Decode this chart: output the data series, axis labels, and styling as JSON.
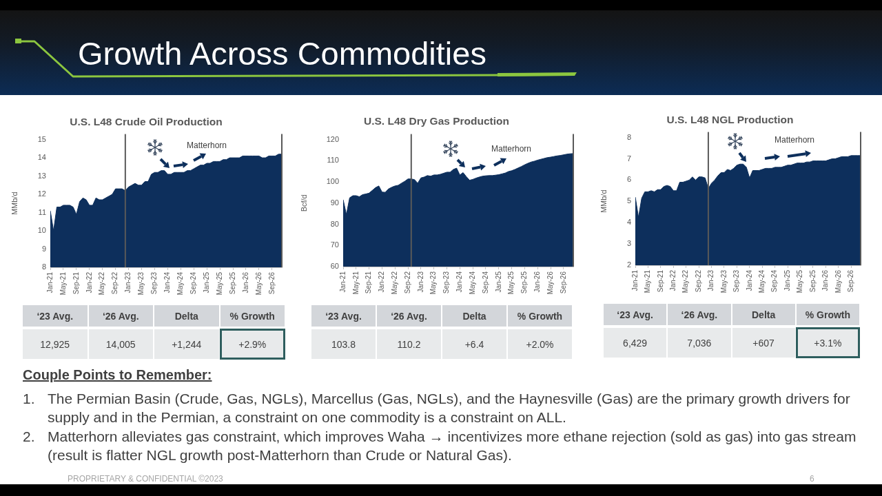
{
  "chart_data": [
    {
      "type": "other",
      "title": "Growth Across Commodities",
      "annotations": [
        "PROPRIETARY & CONFIDENTIAL ©2023",
        "6"
      ]
    },
    {
      "type": "area",
      "title": "U.S. L48 Crude Oil Production",
      "ylabel": "MMb/d",
      "color": "#0d2f5c",
      "x": [
        "2021-01",
        "2021-02",
        "2021-03",
        "2021-04",
        "2021-05",
        "2021-06",
        "2021-07",
        "2021-08",
        "2021-09",
        "2021-10",
        "2021-11",
        "2021-12",
        "2022-01",
        "2022-02",
        "2022-03",
        "2022-04",
        "2022-05",
        "2022-06",
        "2022-07",
        "2022-08",
        "2022-09",
        "2022-10",
        "2022-11",
        "2022-12",
        "2023-01",
        "2023-02",
        "2023-03",
        "2023-04",
        "2023-05",
        "2023-06",
        "2023-07",
        "2023-08",
        "2023-09",
        "2023-10",
        "2023-11",
        "2023-12",
        "2024-01",
        "2024-02",
        "2024-03",
        "2024-04",
        "2024-05",
        "2024-06",
        "2024-07",
        "2024-08",
        "2024-09",
        "2024-10",
        "2024-11",
        "2024-12",
        "2025-01",
        "2025-02",
        "2025-03",
        "2025-04",
        "2025-05",
        "2025-06",
        "2025-07",
        "2025-08",
        "2025-09",
        "2025-10",
        "2025-11",
        "2025-12",
        "2026-01",
        "2026-02",
        "2026-03",
        "2026-04",
        "2026-05",
        "2026-06",
        "2026-07",
        "2026-08",
        "2026-09",
        "2026-10",
        "2026-11",
        "2026-12"
      ],
      "values": [
        11.1,
        10.0,
        11.3,
        11.3,
        11.4,
        11.4,
        11.4,
        11.3,
        10.9,
        11.6,
        11.8,
        11.7,
        11.4,
        11.4,
        11.8,
        11.7,
        11.7,
        11.8,
        11.9,
        12.0,
        12.3,
        12.3,
        12.3,
        12.2,
        12.4,
        12.5,
        12.6,
        12.5,
        12.5,
        12.7,
        12.7,
        13.1,
        13.2,
        13.2,
        13.3,
        13.3,
        13.1,
        13.1,
        13.2,
        13.2,
        13.2,
        13.2,
        13.3,
        13.3,
        13.4,
        13.5,
        13.6,
        13.6,
        13.7,
        13.7,
        13.8,
        13.8,
        13.8,
        13.9,
        13.9,
        14.0,
        14.0,
        14.0,
        14.0,
        14.1,
        14.1,
        14.1,
        14.1,
        14.1,
        14.1,
        14.0,
        14.0,
        14.1,
        14.1,
        14.1,
        14.2,
        14.2
      ],
      "xlim": [
        "2021-01",
        "2026-12"
      ],
      "ylim": [
        8,
        15
      ],
      "yticks": [
        8,
        9,
        10,
        11,
        12,
        13,
        14,
        15
      ],
      "xticks": [
        {
          "value": "2021-01",
          "label": "Jan-21"
        },
        {
          "value": "2021-05",
          "label": "May-21"
        },
        {
          "value": "2021-09",
          "label": "Sep-21"
        },
        {
          "value": "2022-01",
          "label": "Jan-22"
        },
        {
          "value": "2022-05",
          "label": "May-22"
        },
        {
          "value": "2022-09",
          "label": "Sep-22"
        },
        {
          "value": "2023-01",
          "label": "Jan-23"
        },
        {
          "value": "2023-05",
          "label": "May-23"
        },
        {
          "value": "2023-09",
          "label": "Sep-23"
        },
        {
          "value": "2024-01",
          "label": "Jan-24"
        },
        {
          "value": "2024-05",
          "label": "May-24"
        },
        {
          "value": "2024-09",
          "label": "Sep-24"
        },
        {
          "value": "2025-01",
          "label": "Jan-25"
        },
        {
          "value": "2025-05",
          "label": "May-25"
        },
        {
          "value": "2025-09",
          "label": "Sep-25"
        },
        {
          "value": "2026-01",
          "label": "Jan-26"
        },
        {
          "value": "2026-05",
          "label": "May-26"
        },
        {
          "value": "2026-09",
          "label": "Sep-26"
        }
      ],
      "ref_lines": [
        {
          "axis": "x",
          "value": "2022-12",
          "color": "#595959"
        },
        {
          "axis": "x",
          "value": "2026-12",
          "color": "#595959"
        }
      ],
      "annotations": [
        "Matterhorn",
        "‘23 Avg.",
        "‘26 Avg.",
        "Delta",
        "% Growth",
        "12,925",
        "14,005",
        "+1,244",
        "+2.9%"
      ]
    },
    {
      "type": "area",
      "title": "U.S. L48 Dry Gas Production",
      "ylabel": "Bcf/d",
      "color": "#0d2f5c",
      "x": [
        "2021-01",
        "2021-02",
        "2021-03",
        "2021-04",
        "2021-05",
        "2021-06",
        "2021-07",
        "2021-08",
        "2021-09",
        "2021-10",
        "2021-11",
        "2021-12",
        "2022-01",
        "2022-02",
        "2022-03",
        "2022-04",
        "2022-05",
        "2022-06",
        "2022-07",
        "2022-08",
        "2022-09",
        "2022-10",
        "2022-11",
        "2022-12",
        "2023-01",
        "2023-02",
        "2023-03",
        "2023-04",
        "2023-05",
        "2023-06",
        "2023-07",
        "2023-08",
        "2023-09",
        "2023-10",
        "2023-11",
        "2023-12",
        "2024-01",
        "2024-02",
        "2024-03",
        "2024-04",
        "2024-05",
        "2024-06",
        "2024-07",
        "2024-08",
        "2024-09",
        "2024-10",
        "2024-11",
        "2024-12",
        "2025-01",
        "2025-02",
        "2025-03",
        "2025-04",
        "2025-05",
        "2025-06",
        "2025-07",
        "2025-08",
        "2025-09",
        "2025-10",
        "2025-11",
        "2025-12",
        "2026-01",
        "2026-02",
        "2026-03",
        "2026-04",
        "2026-05",
        "2026-06",
        "2026-07",
        "2026-08",
        "2026-09",
        "2026-10",
        "2026-11",
        "2026-12"
      ],
      "values": [
        91.6,
        84.6,
        92.5,
        93.5,
        93.5,
        93.0,
        94.0,
        94.3,
        94.7,
        96.0,
        97.3,
        98.1,
        95.2,
        95.1,
        96.7,
        97.5,
        98.1,
        98.4,
        99.4,
        100.3,
        101.4,
        101.4,
        101.1,
        99.4,
        101.9,
        102.3,
        103.0,
        102.7,
        103.3,
        103.3,
        103.6,
        104.1,
        104.6,
        104.6,
        105.9,
        106.5,
        103.3,
        104.4,
        102.5,
        100.8,
        101.2,
        101.8,
        102.3,
        102.7,
        102.9,
        103.0,
        103.0,
        103.2,
        103.4,
        103.8,
        104.2,
        104.9,
        105.3,
        105.9,
        106.6,
        107.3,
        108.1,
        108.8,
        109.4,
        109.8,
        110.3,
        110.7,
        111.1,
        111.5,
        111.7,
        112.0,
        112.3,
        112.5,
        112.8,
        113.1,
        113.3,
        113.4
      ],
      "xlim": [
        "2021-01",
        "2026-12"
      ],
      "ylim": [
        60,
        120
      ],
      "yticks": [
        60,
        70,
        80,
        90,
        100,
        110,
        120
      ],
      "xticks": [
        {
          "value": "2021-01",
          "label": "Jan-21"
        },
        {
          "value": "2021-05",
          "label": "May-21"
        },
        {
          "value": "2021-09",
          "label": "Sep-21"
        },
        {
          "value": "2022-01",
          "label": "Jan-22"
        },
        {
          "value": "2022-05",
          "label": "May-22"
        },
        {
          "value": "2022-09",
          "label": "Sep-22"
        },
        {
          "value": "2023-01",
          "label": "Jan-23"
        },
        {
          "value": "2023-05",
          "label": "May-23"
        },
        {
          "value": "2023-09",
          "label": "Sep-23"
        },
        {
          "value": "2024-01",
          "label": "Jan-24"
        },
        {
          "value": "2024-05",
          "label": "May-24"
        },
        {
          "value": "2024-09",
          "label": "Sep-24"
        },
        {
          "value": "2025-01",
          "label": "Jan-25"
        },
        {
          "value": "2025-05",
          "label": "May-25"
        },
        {
          "value": "2025-09",
          "label": "Sep-25"
        },
        {
          "value": "2026-01",
          "label": "Jan-26"
        },
        {
          "value": "2026-05",
          "label": "May-26"
        },
        {
          "value": "2026-09",
          "label": "Sep-26"
        }
      ],
      "ref_lines": [
        {
          "axis": "x",
          "value": "2022-10",
          "color": "#595959"
        },
        {
          "axis": "x",
          "value": "2026-12",
          "color": "#595959"
        }
      ],
      "annotations": [
        "Matterhorn",
        "‘23 Avg.",
        "‘26 Avg.",
        "Delta",
        "% Growth",
        "103.8",
        "110.2",
        "+6.4",
        "+2.0%"
      ]
    },
    {
      "type": "area",
      "title": "U.S. L48 NGL Production",
      "ylabel": "MMb/d",
      "color": "#0d2f5c",
      "x": [
        "2021-01",
        "2021-02",
        "2021-03",
        "2021-04",
        "2021-05",
        "2021-06",
        "2021-07",
        "2021-08",
        "2021-09",
        "2021-10",
        "2021-11",
        "2021-12",
        "2022-01",
        "2022-02",
        "2022-03",
        "2022-04",
        "2022-05",
        "2022-06",
        "2022-07",
        "2022-08",
        "2022-09",
        "2022-10",
        "2022-11",
        "2022-12",
        "2023-01",
        "2023-02",
        "2023-03",
        "2023-04",
        "2023-05",
        "2023-06",
        "2023-07",
        "2023-08",
        "2023-09",
        "2023-10",
        "2023-11",
        "2023-12",
        "2024-01",
        "2024-02",
        "2024-03",
        "2024-04",
        "2024-05",
        "2024-06",
        "2024-07",
        "2024-08",
        "2024-09",
        "2024-10",
        "2024-11",
        "2024-12",
        "2025-01",
        "2025-02",
        "2025-03",
        "2025-04",
        "2025-05",
        "2025-06",
        "2025-07",
        "2025-08",
        "2025-09",
        "2025-10",
        "2025-11",
        "2025-12",
        "2026-01",
        "2026-02",
        "2026-03",
        "2026-04",
        "2026-05",
        "2026-06",
        "2026-07",
        "2026-08",
        "2026-09",
        "2026-10",
        "2026-11",
        "2026-12"
      ],
      "values": [
        5.2,
        4.25,
        5.15,
        5.45,
        5.45,
        5.5,
        5.45,
        5.55,
        5.55,
        5.7,
        5.75,
        5.7,
        5.5,
        5.5,
        5.9,
        5.9,
        5.95,
        6.0,
        6.15,
        6.0,
        6.15,
        6.15,
        6.1,
        5.6,
        5.85,
        6.0,
        6.2,
        6.35,
        6.35,
        6.5,
        6.45,
        6.55,
        6.7,
        6.75,
        6.75,
        6.6,
        6.1,
        6.45,
        6.45,
        6.45,
        6.5,
        6.55,
        6.55,
        6.55,
        6.6,
        6.6,
        6.6,
        6.65,
        6.7,
        6.7,
        6.75,
        6.8,
        6.8,
        6.8,
        6.85,
        6.85,
        6.9,
        6.9,
        6.9,
        6.9,
        6.9,
        6.95,
        7.0,
        7.0,
        7.05,
        7.1,
        7.1,
        7.1,
        7.15,
        7.15,
        7.15,
        7.15
      ],
      "xlim": [
        "2021-01",
        "2026-12"
      ],
      "ylim": [
        2,
        8
      ],
      "yticks": [
        2,
        3,
        4,
        5,
        6,
        7,
        8
      ],
      "xticks": [
        {
          "value": "2021-01",
          "label": "Jan-21"
        },
        {
          "value": "2021-05",
          "label": "May-21"
        },
        {
          "value": "2021-09",
          "label": "Sep-21"
        },
        {
          "value": "2022-01",
          "label": "Jan-22"
        },
        {
          "value": "2022-05",
          "label": "May-22"
        },
        {
          "value": "2022-09",
          "label": "Sep-22"
        },
        {
          "value": "2023-01",
          "label": "Jan-23"
        },
        {
          "value": "2023-05",
          "label": "May-23"
        },
        {
          "value": "2023-09",
          "label": "Sep-23"
        },
        {
          "value": "2024-01",
          "label": "Jan-24"
        },
        {
          "value": "2024-05",
          "label": "May-24"
        },
        {
          "value": "2024-09",
          "label": "Sep-24"
        },
        {
          "value": "2025-01",
          "label": "Jan-25"
        },
        {
          "value": "2025-05",
          "label": "May-25"
        },
        {
          "value": "2025-09",
          "label": "Sep-25"
        },
        {
          "value": "2026-01",
          "label": "Jan-26"
        },
        {
          "value": "2026-05",
          "label": "May-26"
        },
        {
          "value": "2026-09",
          "label": "Sep-26"
        }
      ],
      "ref_lines": [
        {
          "axis": "x",
          "value": "2022-12",
          "color": "#595959"
        },
        {
          "axis": "x",
          "value": "2026-12",
          "color": "#595959"
        }
      ],
      "annotations": [
        "Matterhorn",
        "‘23 Avg.",
        "‘26 Avg.",
        "Delta",
        "% Growth",
        "6,429",
        "7,036",
        "+607",
        "+3.1%"
      ]
    },
    {
      "type": "other",
      "title": "Couple Points to Remember:",
      "annotations": [
        "1.",
        "The Permian Basin (Crude, Gas, NGLs), Marcellus (Gas, NGLs), and the Haynesville (Gas) are the primary growth drivers for supply and in the Permian, a constraint on one commodity is a constraint on ALL.",
        "2.",
        "Matterhorn alleviates gas constraint, which improves Waha → incentivizes more ethane rejection (sold as gas) into gas stream (result is flatter NGL growth post-Matterhorn than Crude or Natural Gas)."
      ]
    }
  ]
}
